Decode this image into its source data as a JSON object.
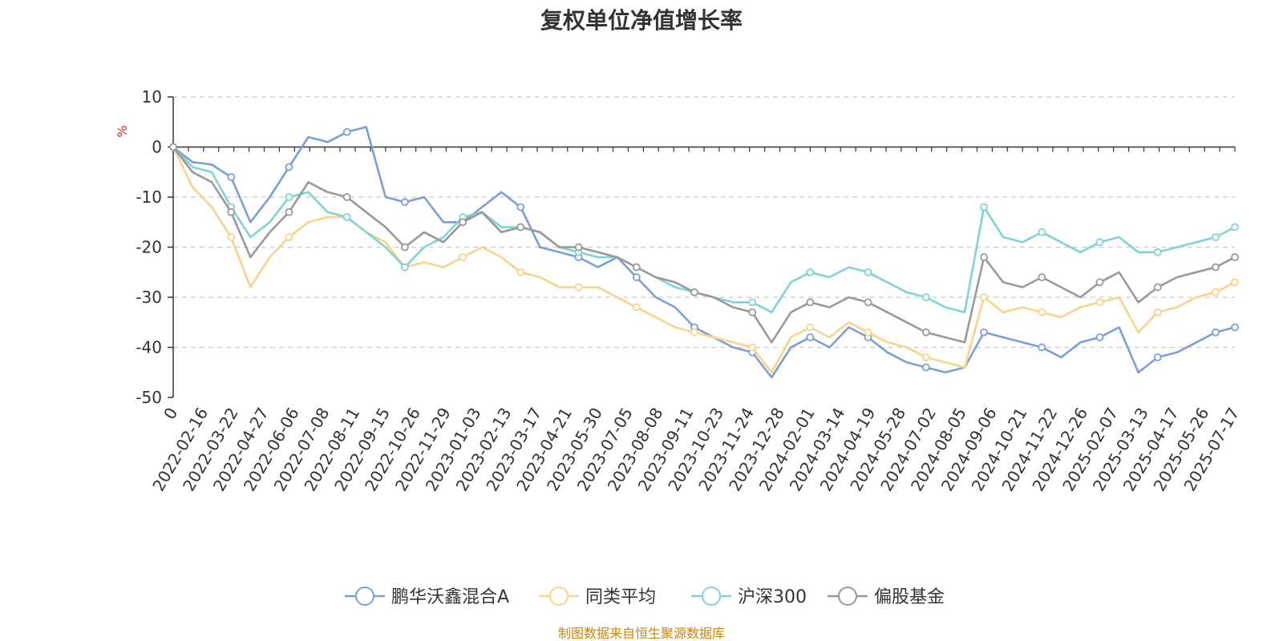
{
  "chart_data": {
    "type": "line",
    "title": "复权单位净值增长率",
    "y_unit_label": "%",
    "source_note": "制图数据来自恒生聚源数据库",
    "ylim": [
      -50,
      10
    ],
    "y_ticks": [
      10,
      0,
      -10,
      -20,
      -30,
      -40,
      -50
    ],
    "grid": true,
    "legend_position": "bottom-center",
    "x_labels": [
      "0",
      "2022-02-16",
      "2022-03-22",
      "2022-04-27",
      "2022-06-06",
      "2022-07-08",
      "2022-08-11",
      "2022-09-15",
      "2022-10-26",
      "2022-11-29",
      "2023-01-03",
      "2023-02-13",
      "2023-03-17",
      "2023-04-21",
      "2023-05-30",
      "2023-07-05",
      "2023-08-08",
      "2023-09-11",
      "2023-10-23",
      "2023-11-24",
      "2023-12-28",
      "2024-02-01",
      "2024-03-14",
      "2024-04-19",
      "2024-05-28",
      "2024-07-02",
      "2024-08-05",
      "2024-09-06",
      "2024-10-21",
      "2024-11-22",
      "2024-12-26",
      "2025-02-07",
      "2025-03-13",
      "2025-04-17",
      "2025-05-26",
      "2025-07-17"
    ],
    "series": [
      {
        "name": "鹏华沃鑫混合A",
        "color": "#7b9fd4",
        "values": [
          0,
          -3,
          -3.5,
          -6,
          -15,
          -10,
          -4,
          2,
          1,
          3,
          4,
          -10,
          -11,
          -10,
          -15,
          -15,
          -12,
          -9,
          -12,
          -20,
          -21,
          -22,
          -24,
          -22,
          -26,
          -30,
          -32,
          -36,
          -38,
          -40,
          -41,
          -46,
          -40,
          -38,
          -40,
          -36,
          -38,
          -41,
          -43,
          -44,
          -45,
          -44,
          -37,
          -38,
          -39,
          -40,
          -42,
          -39,
          -38,
          -36,
          -45,
          -42,
          -41,
          -39,
          -37,
          -36
        ]
      },
      {
        "name": "同类平均",
        "color": "#f8d38a",
        "values": [
          0,
          -8,
          -12,
          -18,
          -28,
          -22,
          -18,
          -15,
          -14,
          -14,
          -17,
          -19,
          -24,
          -23,
          -24,
          -22,
          -20,
          -22,
          -25,
          -26,
          -28,
          -28,
          -28,
          -30,
          -32,
          -34,
          -36,
          -37,
          -38,
          -39,
          -40,
          -45,
          -38,
          -36,
          -38,
          -35,
          -37,
          -39,
          -40,
          -42,
          -43,
          -44,
          -30,
          -33,
          -32,
          -33,
          -34,
          -32,
          -31,
          -30,
          -37,
          -33,
          -32,
          -30,
          -29,
          -27
        ]
      },
      {
        "name": "沪深300",
        "color": "#7fd3d3",
        "values": [
          0,
          -4,
          -5,
          -12,
          -18,
          -15,
          -10,
          -9,
          -13,
          -14,
          -17,
          -20,
          -24,
          -20,
          -18,
          -14,
          -13,
          -16,
          -16,
          -17,
          -20,
          -21,
          -22,
          -22,
          -24,
          -26,
          -28,
          -29,
          -30,
          -31,
          -31,
          -33,
          -27,
          -25,
          -26,
          -24,
          -25,
          -27,
          -29,
          -30,
          -32,
          -33,
          -12,
          -18,
          -19,
          -17,
          -19,
          -21,
          -19,
          -18,
          -21,
          -21,
          -20,
          -19,
          -18,
          -16
        ]
      },
      {
        "name": "偏股基金",
        "color": "#999999",
        "values": [
          0,
          -5,
          -7,
          -13,
          -22,
          -17,
          -13,
          -7,
          -9,
          -10,
          -13,
          -16,
          -20,
          -17,
          -19,
          -15,
          -13,
          -17,
          -16,
          -17,
          -20,
          -20,
          -21,
          -22,
          -24,
          -26,
          -27,
          -29,
          -30,
          -32,
          -33,
          -39,
          -33,
          -31,
          -32,
          -30,
          -31,
          -33,
          -35,
          -37,
          -38,
          -39,
          -22,
          -27,
          -28,
          -26,
          -28,
          -30,
          -27,
          -25,
          -31,
          -28,
          -26,
          -25,
          -24,
          -22
        ]
      }
    ]
  }
}
